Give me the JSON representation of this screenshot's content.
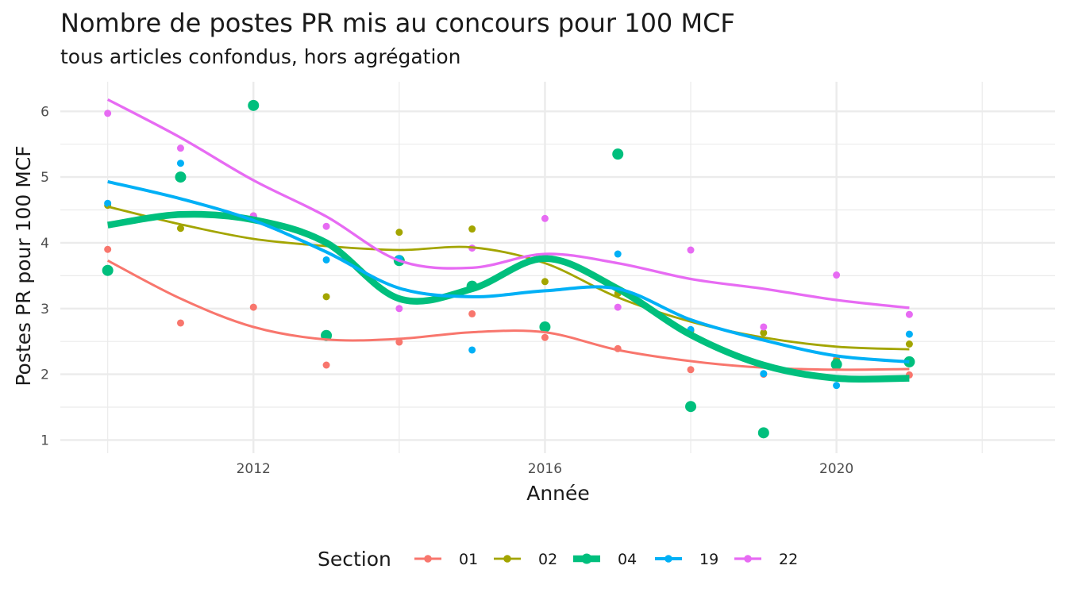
{
  "chart_data": {
    "type": "scatter",
    "title": "Nombre de postes PR mis au concours pour 100 MCF",
    "subtitle": "tous articles confondus, hors agrégation",
    "xlabel": "Année",
    "ylabel": "Postes PR pour 100 MCF",
    "xlim": [
      2009.35,
      2023.0
    ],
    "ylim": [
      0.8,
      6.45
    ],
    "xticks": [
      2012,
      2016,
      2020
    ],
    "yticks": [
      1,
      2,
      3,
      4,
      5,
      6
    ],
    "grid": true,
    "legend": {
      "title": "Section",
      "position": "bottom"
    },
    "overlay": "smoothed trend line per series",
    "series": [
      {
        "name": "01",
        "color": "#F8766D",
        "points": [
          [
            2010,
            3.9
          ],
          [
            2011,
            2.78
          ],
          [
            2012,
            3.02
          ],
          [
            2013,
            2.14
          ],
          [
            2014,
            2.49
          ],
          [
            2015,
            2.92
          ],
          [
            2016,
            2.56
          ],
          [
            2017,
            2.39
          ],
          [
            2018,
            2.07
          ],
          [
            2019,
            2.0
          ],
          [
            2020,
            2.23
          ],
          [
            2021,
            1.99
          ]
        ],
        "trend": [
          [
            2010,
            3.73
          ],
          [
            2011,
            3.15
          ],
          [
            2012,
            2.72
          ],
          [
            2013,
            2.53
          ],
          [
            2014,
            2.54
          ],
          [
            2015,
            2.64
          ],
          [
            2016,
            2.64
          ],
          [
            2017,
            2.37
          ],
          [
            2018,
            2.2
          ],
          [
            2019,
            2.1
          ],
          [
            2020,
            2.07
          ],
          [
            2021,
            2.08
          ]
        ]
      },
      {
        "name": "02",
        "color": "#A3A500",
        "points": [
          [
            2010,
            4.57
          ],
          [
            2011,
            4.22
          ],
          [
            2012,
            4.41
          ],
          [
            2013,
            3.18
          ],
          [
            2014,
            4.16
          ],
          [
            2015,
            4.21
          ],
          [
            2016,
            3.41
          ],
          [
            2017,
            3.23
          ],
          [
            2018,
            2.66
          ],
          [
            2019,
            2.63
          ],
          [
            2020,
            2.2
          ],
          [
            2021,
            2.46
          ]
        ],
        "trend": [
          [
            2010,
            4.55
          ],
          [
            2011,
            4.28
          ],
          [
            2012,
            4.06
          ],
          [
            2013,
            3.95
          ],
          [
            2014,
            3.89
          ],
          [
            2015,
            3.93
          ],
          [
            2016,
            3.69
          ],
          [
            2017,
            3.17
          ],
          [
            2018,
            2.8
          ],
          [
            2019,
            2.56
          ],
          [
            2020,
            2.42
          ],
          [
            2021,
            2.38
          ]
        ]
      },
      {
        "name": "04",
        "color": "#00BF7D",
        "points": [
          [
            2010,
            3.58
          ],
          [
            2011,
            5.0
          ],
          [
            2012,
            6.09
          ],
          [
            2013,
            2.59
          ],
          [
            2014,
            3.73
          ],
          [
            2015,
            3.34
          ],
          [
            2016,
            2.72
          ],
          [
            2017,
            5.35
          ],
          [
            2018,
            1.51
          ],
          [
            2019,
            1.11
          ],
          [
            2020,
            2.15
          ],
          [
            2021,
            2.19
          ]
        ],
        "trend": [
          [
            2010,
            4.27
          ],
          [
            2011,
            4.43
          ],
          [
            2012,
            4.35
          ],
          [
            2013,
            4.0
          ],
          [
            2014,
            3.15
          ],
          [
            2015,
            3.3
          ],
          [
            2016,
            3.76
          ],
          [
            2017,
            3.3
          ],
          [
            2018,
            2.6
          ],
          [
            2019,
            2.14
          ],
          [
            2020,
            1.94
          ],
          [
            2021,
            1.94
          ]
        ]
      },
      {
        "name": "19",
        "color": "#00B0F6",
        "points": [
          [
            2010,
            4.6
          ],
          [
            2011,
            5.21
          ],
          [
            2012,
            4.4
          ],
          [
            2013,
            3.74
          ],
          [
            2014,
            3.76
          ],
          [
            2015,
            2.37
          ],
          [
            2016,
            3.78
          ],
          [
            2017,
            3.83
          ],
          [
            2018,
            2.68
          ],
          [
            2019,
            2.01
          ],
          [
            2020,
            1.83
          ],
          [
            2021,
            2.61
          ]
        ],
        "trend": [
          [
            2010,
            4.93
          ],
          [
            2011,
            4.67
          ],
          [
            2012,
            4.34
          ],
          [
            2013,
            3.86
          ],
          [
            2014,
            3.31
          ],
          [
            2015,
            3.18
          ],
          [
            2016,
            3.27
          ],
          [
            2017,
            3.3
          ],
          [
            2018,
            2.83
          ],
          [
            2019,
            2.52
          ],
          [
            2020,
            2.28
          ],
          [
            2021,
            2.19
          ]
        ]
      },
      {
        "name": "22",
        "color": "#E76BF3",
        "points": [
          [
            2010,
            5.97
          ],
          [
            2011,
            5.44
          ],
          [
            2012,
            4.41
          ],
          [
            2013,
            4.25
          ],
          [
            2014,
            3.0
          ],
          [
            2015,
            3.92
          ],
          [
            2016,
            4.37
          ],
          [
            2017,
            3.02
          ],
          [
            2018,
            3.89
          ],
          [
            2019,
            2.72
          ],
          [
            2020,
            3.51
          ],
          [
            2021,
            2.91
          ]
        ],
        "trend": [
          [
            2010,
            6.18
          ],
          [
            2011,
            5.6
          ],
          [
            2012,
            4.95
          ],
          [
            2013,
            4.4
          ],
          [
            2014,
            3.73
          ],
          [
            2015,
            3.62
          ],
          [
            2016,
            3.83
          ],
          [
            2017,
            3.69
          ],
          [
            2018,
            3.45
          ],
          [
            2019,
            3.3
          ],
          [
            2020,
            3.13
          ],
          [
            2021,
            3.01
          ]
        ]
      }
    ]
  }
}
